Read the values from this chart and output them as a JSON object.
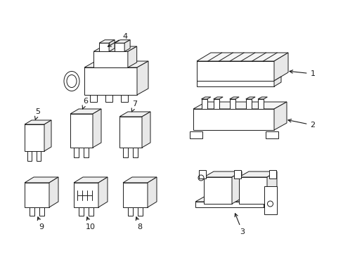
{
  "background_color": "#ffffff",
  "line_color": "#1a1a1a",
  "fig_width": 4.89,
  "fig_height": 3.6,
  "dpi": 100,
  "lw": 0.7
}
